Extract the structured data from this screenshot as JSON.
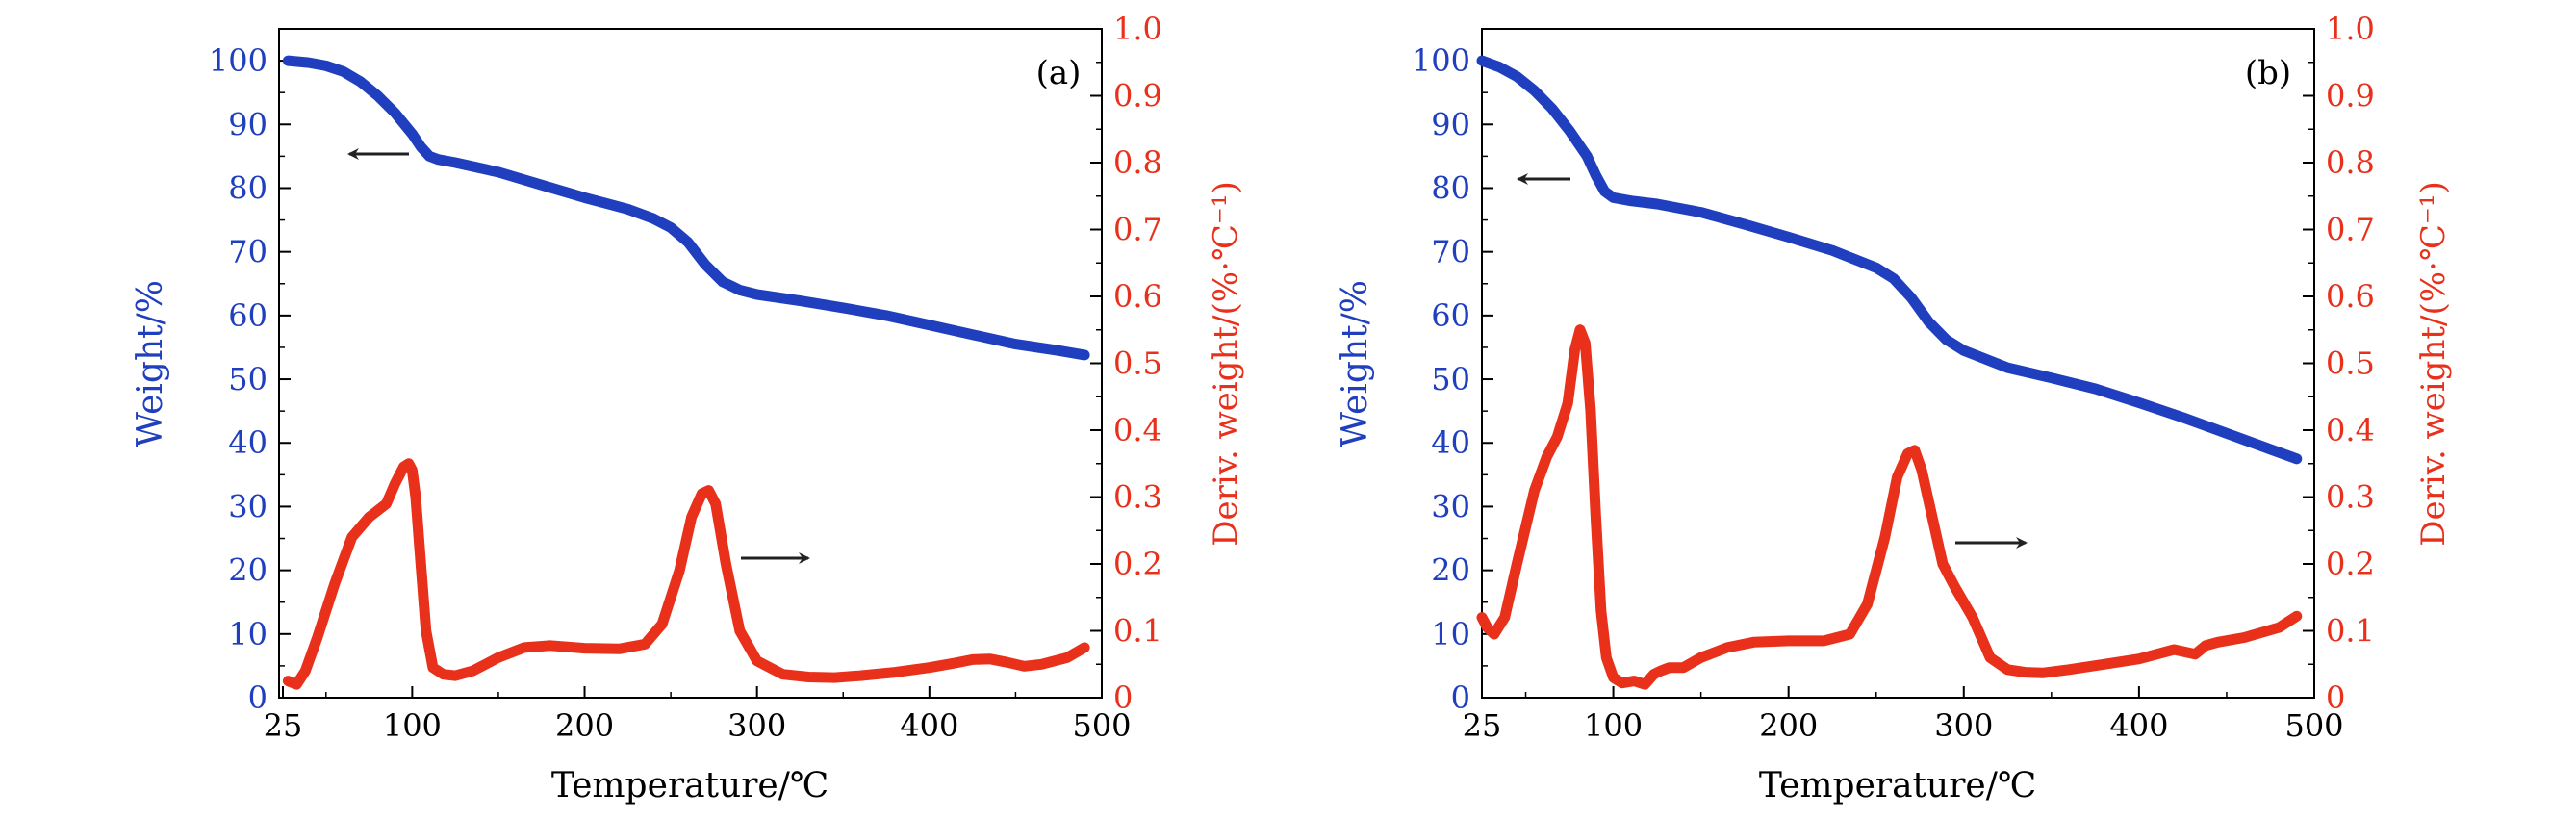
{
  "colors": {
    "weight": "#1f3fbf",
    "deriv": "#e8301a",
    "axis": "#000000",
    "arrow": "#222222"
  },
  "panels": [
    {
      "panel_label": "(a)",
      "xlabel": "Temperature/℃",
      "ylabel_left": "Weight/%",
      "ylabel_right": "Deriv. weight/(%·℃⁻¹)",
      "x_ticks": [
        "25",
        "100",
        "200",
        "300",
        "400",
        "500"
      ],
      "y_left_ticks": [
        "0",
        "10",
        "20",
        "30",
        "40",
        "50",
        "60",
        "70",
        "80",
        "90",
        "100"
      ],
      "y_right_ticks": [
        "0",
        "0.1",
        "0.2",
        "0.3",
        "0.4",
        "0.5",
        "0.6",
        "0.7",
        "0.8",
        "0.9",
        "1.0"
      ]
    },
    {
      "panel_label": "(b)",
      "xlabel": "Temperature/℃",
      "ylabel_left": "Weight/%",
      "ylabel_right": "Deriv. weight/(%·℃⁻¹)",
      "x_ticks": [
        "25",
        "100",
        "200",
        "300",
        "400",
        "500"
      ],
      "y_left_ticks": [
        "0",
        "10",
        "20",
        "30",
        "40",
        "50",
        "60",
        "70",
        "80",
        "90",
        "100"
      ],
      "y_right_ticks": [
        "0",
        "0.1",
        "0.2",
        "0.3",
        "0.4",
        "0.5",
        "0.6",
        "0.7",
        "0.8",
        "0.9",
        "1.0"
      ]
    }
  ],
  "chart_data": [
    {
      "type": "line",
      "title": "",
      "xlabel": "Temperature/℃",
      "ylabel": "Weight/%",
      "ylabel_right": "Deriv. weight/(%·℃⁻¹)",
      "xlim": [
        25,
        500
      ],
      "ylim": [
        0,
        105
      ],
      "ylim_right": [
        0,
        1.0
      ],
      "grid": false,
      "annotation": "(a)",
      "series": [
        {
          "axis": "left",
          "color": "#1f3fbf",
          "x": [
            28,
            40,
            50,
            60,
            70,
            80,
            90,
            100,
            105,
            110,
            115,
            125,
            150,
            175,
            200,
            225,
            240,
            250,
            260,
            270,
            280,
            290,
            300,
            325,
            350,
            375,
            400,
            425,
            450,
            475,
            490
          ],
          "y": [
            100,
            99.7,
            99.2,
            98.3,
            96.7,
            94.5,
            91.8,
            88.5,
            86.5,
            85,
            84.5,
            84,
            82.5,
            80.5,
            78.5,
            76.7,
            75.2,
            73.8,
            71.5,
            68,
            65.3,
            64,
            63.3,
            62.3,
            61.2,
            60,
            58.5,
            57,
            55.5,
            54.5,
            53.8
          ]
        },
        {
          "axis": "right",
          "color": "#e8301a",
          "x": [
            28,
            33,
            38,
            45,
            55,
            65,
            75,
            85,
            90,
            95,
            98,
            100,
            102,
            105,
            108,
            112,
            118,
            125,
            135,
            150,
            165,
            180,
            200,
            220,
            235,
            245,
            255,
            262,
            268,
            272,
            276,
            282,
            290,
            300,
            315,
            330,
            345,
            360,
            380,
            400,
            415,
            425,
            435,
            445,
            455,
            465,
            480,
            490
          ],
          "y": [
            0.025,
            0.02,
            0.04,
            0.09,
            0.17,
            0.24,
            0.27,
            0.29,
            0.32,
            0.345,
            0.35,
            0.34,
            0.3,
            0.2,
            0.1,
            0.045,
            0.035,
            0.033,
            0.04,
            0.06,
            0.075,
            0.078,
            0.074,
            0.073,
            0.08,
            0.11,
            0.19,
            0.27,
            0.305,
            0.31,
            0.29,
            0.2,
            0.1,
            0.055,
            0.035,
            0.031,
            0.03,
            0.033,
            0.038,
            0.045,
            0.052,
            0.057,
            0.058,
            0.053,
            0.047,
            0.05,
            0.06,
            0.075
          ]
        }
      ]
    },
    {
      "type": "line",
      "title": "",
      "xlabel": "Temperature/℃",
      "ylabel": "Weight/%",
      "ylabel_right": "Deriv. weight/(%·℃⁻¹)",
      "xlim": [
        25,
        500
      ],
      "ylim": [
        0,
        105
      ],
      "ylim_right": [
        0,
        1.0
      ],
      "grid": false,
      "annotation": "(b)",
      "series": [
        {
          "axis": "left",
          "color": "#1f3fbf",
          "x": [
            25,
            35,
            45,
            55,
            65,
            75,
            85,
            90,
            95,
            100,
            110,
            125,
            150,
            175,
            200,
            225,
            250,
            260,
            270,
            280,
            290,
            300,
            325,
            350,
            375,
            400,
            425,
            450,
            475,
            490
          ],
          "y": [
            100,
            99,
            97.5,
            95.3,
            92.5,
            89,
            85,
            82,
            79.5,
            78.5,
            78,
            77.5,
            76.2,
            74.3,
            72.3,
            70.2,
            67.5,
            65.8,
            62.8,
            59,
            56.2,
            54.5,
            51.8,
            50.2,
            48.5,
            46.3,
            44,
            41.5,
            39,
            37.5
          ]
        },
        {
          "axis": "right",
          "color": "#e8301a",
          "x": [
            25,
            28,
            32,
            38,
            45,
            55,
            62,
            68,
            74,
            78,
            81,
            84,
            87,
            90,
            93,
            96,
            100,
            105,
            112,
            118,
            123,
            127,
            132,
            140,
            150,
            165,
            180,
            200,
            220,
            235,
            245,
            255,
            262,
            268,
            272,
            276,
            282,
            288,
            295,
            305,
            315,
            325,
            335,
            345,
            360,
            380,
            400,
            420,
            432,
            438,
            445,
            460,
            480,
            490
          ],
          "y": [
            0.12,
            0.105,
            0.095,
            0.12,
            0.2,
            0.31,
            0.36,
            0.39,
            0.44,
            0.52,
            0.55,
            0.53,
            0.43,
            0.27,
            0.13,
            0.06,
            0.03,
            0.022,
            0.025,
            0.02,
            0.035,
            0.04,
            0.045,
            0.045,
            0.06,
            0.075,
            0.083,
            0.085,
            0.085,
            0.095,
            0.14,
            0.24,
            0.33,
            0.365,
            0.37,
            0.34,
            0.27,
            0.2,
            0.165,
            0.12,
            0.06,
            0.042,
            0.038,
            0.037,
            0.042,
            0.05,
            0.058,
            0.072,
            0.065,
            0.078,
            0.083,
            0.09,
            0.105,
            0.122
          ]
        }
      ]
    }
  ]
}
